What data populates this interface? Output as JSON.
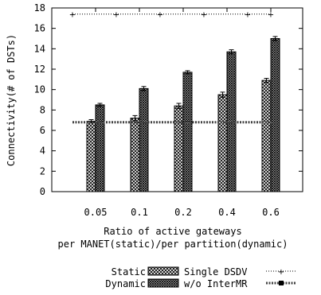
{
  "chart_data": {
    "type": "bar",
    "categories": [
      "0.05",
      "0.1",
      "0.2",
      "0.4",
      "0.6"
    ],
    "ylabel": "Connectivity(# of DSTs)",
    "xlabel_lines": [
      "Ratio of active gateways",
      "per MANET(static)/per partition(dynamic)"
    ],
    "ylim": [
      0,
      18
    ],
    "yticks": [
      0,
      2,
      4,
      6,
      8,
      10,
      12,
      14,
      16,
      18
    ],
    "series": [
      {
        "name": "Static",
        "values": [
          6.9,
          7.2,
          8.4,
          9.5,
          10.9
        ],
        "errors": [
          0.15,
          0.25,
          0.25,
          0.25,
          0.2
        ],
        "pattern": "static"
      },
      {
        "name": "Dynamic",
        "values": [
          8.5,
          10.1,
          11.7,
          13.7,
          15.0
        ],
        "errors": [
          0.15,
          0.2,
          0.15,
          0.2,
          0.2
        ],
        "pattern": "dynamic"
      }
    ],
    "lines": [
      {
        "name": "Single DSDV",
        "value": 17.4,
        "style": "dotted-plus"
      },
      {
        "name": "w/o InterMR",
        "value": 6.8,
        "style": "thick-dotted-square"
      }
    ],
    "grid": false,
    "legend": "bottom-right"
  }
}
